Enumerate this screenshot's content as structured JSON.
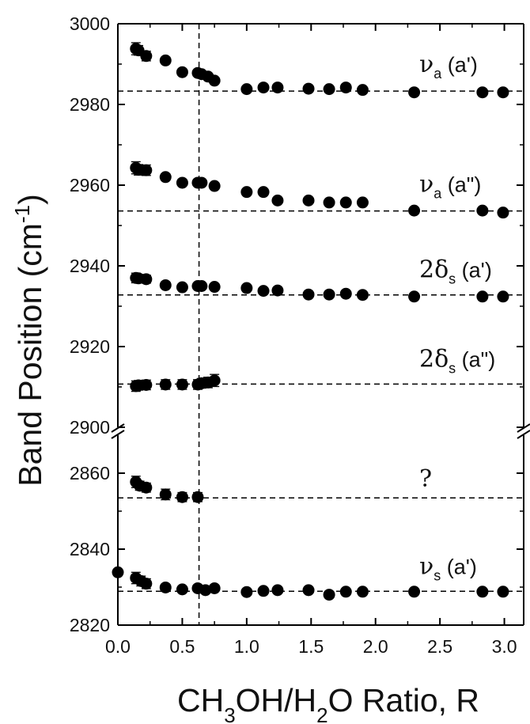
{
  "chart_data": {
    "type": "scatter",
    "xlabel": {
      "pre": "CH",
      "sub1": "3",
      "mid": "OH/H",
      "sub2": "2",
      "post": "O Ratio, R"
    },
    "ylabel": {
      "pre": "Band Position (cm",
      "sup": "-1",
      "post": ")"
    },
    "xlim": [
      0.0,
      3.15
    ],
    "ylim_upper": [
      2900,
      3000
    ],
    "ylim_lower": [
      2820,
      2870
    ],
    "broken_y_axis": true,
    "x_ticks": [
      "0.0",
      "0.5",
      "1.0",
      "1.5",
      "2.0",
      "2.5",
      "3.0"
    ],
    "y_ticks_upper": [
      "3000",
      "2980",
      "2960",
      "2940",
      "2920",
      "2900"
    ],
    "y_ticks_lower": [
      "2860",
      "2840",
      "2820"
    ],
    "vertical_reference_line_x": 0.63,
    "series": [
      {
        "label": {
          "greek": "ν",
          "sub": "a",
          "rest": " (a')"
        },
        "reference_y": 2983.3,
        "x": [
          0.14,
          0.16,
          0.22,
          0.37,
          0.5,
          0.62,
          0.65,
          0.7,
          0.75,
          1.0,
          1.13,
          1.24,
          1.48,
          1.64,
          1.77,
          1.9,
          2.3,
          2.83,
          2.99
        ],
        "y": [
          2993.8,
          2993.4,
          2992.0,
          2990.9,
          2988.0,
          2987.8,
          2987.5,
          2986.9,
          2985.9,
          2983.8,
          2984.2,
          2984.2,
          2983.9,
          2983.8,
          2984.2,
          2983.6,
          2983.0,
          2983.0,
          2983.0
        ],
        "err": [
          1.5,
          1.2,
          1.2,
          0.8,
          0.6,
          0.6,
          0.6,
          0.6,
          0.6,
          0.6,
          0.6,
          0.6,
          0.6,
          0.6,
          0.6,
          0.6,
          0.5,
          0.5,
          0.5
        ]
      },
      {
        "label": {
          "greek": "ν",
          "sub": "a",
          "rest": " (a\")"
        },
        "reference_y": 2953.6,
        "x": [
          0.14,
          0.16,
          0.22,
          0.37,
          0.5,
          0.62,
          0.65,
          0.75,
          1.0,
          1.13,
          1.24,
          1.48,
          1.64,
          1.77,
          1.9,
          2.3,
          2.83,
          2.99
        ],
        "y": [
          2964.3,
          2963.8,
          2963.7,
          2962.0,
          2960.6,
          2960.6,
          2960.6,
          2959.8,
          2958.3,
          2958.3,
          2956.2,
          2956.2,
          2955.7,
          2955.7,
          2955.7,
          2953.7,
          2953.7,
          2953.2
        ],
        "err": [
          1.5,
          1.3,
          1.3,
          0.8,
          0.6,
          0.6,
          0.6,
          0.6,
          0.6,
          0.6,
          0.6,
          0.6,
          0.6,
          0.6,
          0.6,
          0.6,
          0.6,
          0.6
        ]
      },
      {
        "label": {
          "greek": "2δ",
          "sub": "s",
          "rest": " (a')"
        },
        "reference_y": 2932.8,
        "x": [
          0.14,
          0.16,
          0.22,
          0.37,
          0.5,
          0.62,
          0.65,
          0.75,
          1.0,
          1.13,
          1.24,
          1.48,
          1.64,
          1.77,
          1.9,
          2.3,
          2.83,
          2.99
        ],
        "y": [
          2937.0,
          2936.9,
          2936.7,
          2935.2,
          2934.7,
          2935.0,
          2935.0,
          2934.8,
          2934.5,
          2933.8,
          2933.9,
          2932.9,
          2932.9,
          2933.1,
          2932.8,
          2932.4,
          2932.4,
          2932.4
        ],
        "err": [
          1.2,
          1.0,
          1.0,
          0.6,
          0.5,
          0.5,
          0.5,
          0.5,
          0.6,
          0.6,
          0.6,
          0.6,
          0.6,
          0.6,
          0.6,
          0.6,
          0.6,
          0.6
        ]
      },
      {
        "label": {
          "greek": "2δ",
          "sub": "s",
          "rest": " (a\")"
        },
        "reference_y": 2910.7,
        "x": [
          0.14,
          0.16,
          0.22,
          0.37,
          0.5,
          0.62,
          0.65,
          0.7,
          0.75
        ],
        "y": [
          2910.2,
          2910.4,
          2910.5,
          2910.6,
          2910.6,
          2910.6,
          2910.9,
          2911.1,
          2911.6
        ],
        "err": [
          1.3,
          1.2,
          1.2,
          1.2,
          1.2,
          1.2,
          1.2,
          1.3,
          1.5
        ]
      },
      {
        "label": {
          "greek": "?",
          "sub": "",
          "rest": ""
        },
        "reference_y": 2853.5,
        "x": [
          0.14,
          0.17,
          0.22,
          0.37,
          0.5,
          0.62
        ],
        "y": [
          2857.7,
          2856.7,
          2856.2,
          2854.4,
          2853.7,
          2853.7
        ],
        "err": [
          1.5,
          1.2,
          1.2,
          1.4,
          1.2,
          1.2
        ]
      },
      {
        "label": {
          "greek": "ν",
          "sub": "s",
          "rest": " (a')"
        },
        "reference_y": 2828.9,
        "x": [
          0.0,
          0.14,
          0.18,
          0.22,
          0.37,
          0.5,
          0.62,
          0.68,
          0.75,
          1.0,
          1.13,
          1.24,
          1.48,
          1.64,
          1.77,
          1.9,
          2.3,
          2.83,
          2.99
        ],
        "y": [
          2833.9,
          2832.4,
          2831.6,
          2830.9,
          2829.9,
          2829.4,
          2829.7,
          2829.2,
          2829.7,
          2828.7,
          2829.0,
          2829.2,
          2829.2,
          2828.0,
          2828.8,
          2828.8,
          2828.8,
          2828.8,
          2828.8
        ],
        "err": [
          0.8,
          1.5,
          1.3,
          1.3,
          0.8,
          0.7,
          0.7,
          0.7,
          0.7,
          0.7,
          0.7,
          0.7,
          0.7,
          0.7,
          0.7,
          0.7,
          0.7,
          0.7,
          0.7
        ]
      }
    ]
  }
}
